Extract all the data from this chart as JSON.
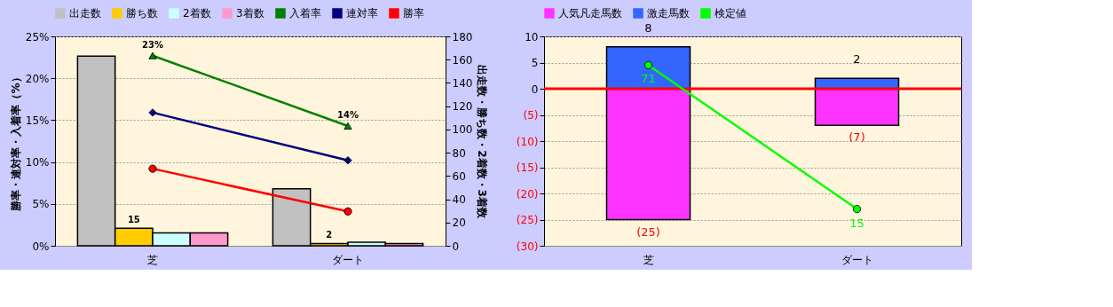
{
  "chart_data": [
    {
      "type": "bar",
      "categories": [
        "芝",
        "ダート"
      ],
      "ylabel": "勝率・連対率・入着率（%）",
      "y2label": "出走数・勝ち数・2着数・3着数",
      "ylim": [
        0,
        25
      ],
      "yticks": [
        {
          "value": 0,
          "label": "0%"
        },
        {
          "value": 5,
          "label": "5%"
        },
        {
          "value": 10,
          "label": "10%"
        },
        {
          "value": 15,
          "label": "15%"
        },
        {
          "value": 20,
          "label": "20%"
        },
        {
          "value": 25,
          "label": "25%"
        }
      ],
      "y2lim": [
        0,
        180
      ],
      "y2ticks": [
        0,
        20,
        40,
        60,
        80,
        100,
        120,
        140,
        160,
        180
      ],
      "grid": "y",
      "legend": "top",
      "series": [
        {
          "name": "出走数",
          "color": "#c0c0c0",
          "axis": "y2",
          "values": [
            163,
            49
          ]
        },
        {
          "name": "勝ち数",
          "color": "#ffcc00",
          "axis": "y2",
          "values": [
            15,
            2
          ],
          "value_labels": [
            "15",
            "2"
          ]
        },
        {
          "name": "2着数",
          "color": "#ccffff",
          "axis": "y2",
          "values": [
            11,
            3
          ]
        },
        {
          "name": "3着数",
          "color": "#ff99cc",
          "axis": "y2",
          "values": [
            11,
            2
          ]
        },
        {
          "name": "入着率",
          "type": "line",
          "color": "#008000",
          "marker": "triangle",
          "values": [
            22.7,
            14.3
          ],
          "value_labels": [
            "23%",
            "14%"
          ]
        },
        {
          "name": "連対率",
          "type": "line",
          "color": "#000080",
          "marker": "diamond",
          "values": [
            15.9,
            10.2
          ]
        },
        {
          "name": "勝率",
          "type": "line",
          "color": "#ff0000",
          "marker": "circle",
          "values": [
            9.2,
            4.1
          ]
        }
      ]
    },
    {
      "type": "bar",
      "stacked": true,
      "categories": [
        "芝",
        "ダート"
      ],
      "ylim": [
        -30,
        10
      ],
      "yticks": [
        {
          "value": -30,
          "label": "(30)"
        },
        {
          "value": -25,
          "label": "(25)"
        },
        {
          "value": -20,
          "label": "(20)"
        },
        {
          "value": -15,
          "label": "(15)"
        },
        {
          "value": -10,
          "label": "(10)"
        },
        {
          "value": -5,
          "label": "(5)"
        },
        0,
        5,
        10
      ],
      "y2lim": [
        0.7,
        82.2
      ],
      "grid": "y",
      "legend": "top",
      "ref_lines": [
        {
          "axis": "y",
          "value": 0,
          "color": "#ff0000"
        }
      ],
      "series": [
        {
          "name": "人気凡走馬数",
          "color": "#ff33ff",
          "values": [
            -25,
            -7
          ],
          "value_labels": [
            "(25)",
            "(7)"
          ]
        },
        {
          "name": "激走馬数",
          "color": "#3366ff",
          "values": [
            8,
            2
          ],
          "value_labels": [
            "8",
            "2"
          ]
        },
        {
          "name": "検定値",
          "type": "line",
          "axis": "y2",
          "color": "#00ff00",
          "marker": "circle",
          "values": [
            71,
            15
          ],
          "value_labels": [
            "71",
            "15"
          ]
        }
      ]
    }
  ]
}
